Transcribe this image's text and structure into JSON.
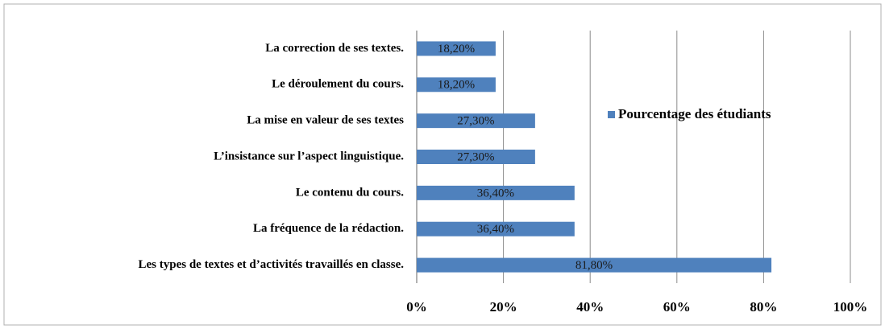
{
  "chart_data": {
    "type": "bar",
    "orientation": "horizontal",
    "categories": [
      "La correction de ses textes.",
      "Le déroulement du cours.",
      "La mise en valeur de ses textes",
      "L’insistance sur l’aspect linguistique.",
      "Le contenu du cours.",
      "La fréquence de la rédaction.",
      "Les types de textes et d’activités travaillés en classe."
    ],
    "series": [
      {
        "name": "Pourcentage des étudiants",
        "color": "#4f81bd",
        "values": [
          18.2,
          18.2,
          27.3,
          27.3,
          36.4,
          36.4,
          81.8
        ],
        "value_labels": [
          "18,20%",
          "18,20%",
          "27,30%",
          "27,30%",
          "36,40%",
          "36,40%",
          "81,80%"
        ]
      }
    ],
    "xlim": [
      0,
      100
    ],
    "xticks": [
      {
        "value": 0,
        "label": "0%"
      },
      {
        "value": 20,
        "label": "20%"
      },
      {
        "value": 40,
        "label": "40%"
      },
      {
        "value": 60,
        "label": "60%"
      },
      {
        "value": 80,
        "label": "80%"
      },
      {
        "value": 100,
        "label": "100%"
      }
    ],
    "grid": true,
    "legend": "right"
  }
}
